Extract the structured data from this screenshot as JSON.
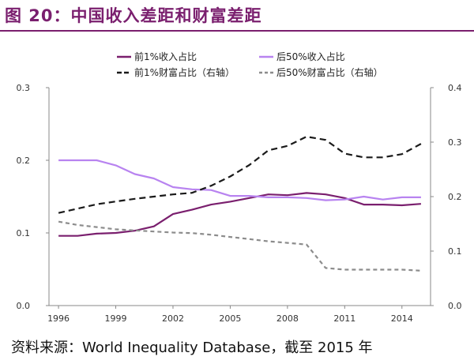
{
  "figure_title": "图 20：中国收入差距和财富差距",
  "source": "资料来源：World Inequality Database，截至 2015 年",
  "chart_data": {
    "type": "line",
    "x": [
      1996,
      1997,
      1998,
      1999,
      2000,
      2001,
      2002,
      2003,
      2004,
      2005,
      2006,
      2007,
      2008,
      2009,
      2010,
      2011,
      2012,
      2013,
      2014,
      2015
    ],
    "x_ticks": [
      "1996",
      "1999",
      "2002",
      "2005",
      "2008",
      "2011",
      "2014"
    ],
    "x_tick_values": [
      1996,
      1999,
      2002,
      2005,
      2008,
      2011,
      2014
    ],
    "xlim": [
      1995.5,
      2015.5
    ],
    "ylim_left": [
      0,
      0.3
    ],
    "y_ticks_left": [
      "0.0",
      "0.1",
      "0.2",
      "0.3"
    ],
    "ylim_right": [
      0,
      0.4
    ],
    "y_ticks_right": [
      "0.0",
      "0.1",
      "0.2",
      "0.3",
      "0.4"
    ],
    "grid": false,
    "legend_position": "top",
    "series": [
      {
        "name": "前1%收入占比",
        "axis": "left",
        "color": "#7a1f6e",
        "dash": "solid",
        "width": 2.2,
        "values": [
          0.096,
          0.096,
          0.099,
          0.1,
          0.103,
          0.109,
          0.126,
          0.132,
          0.139,
          0.143,
          0.148,
          0.153,
          0.152,
          0.155,
          0.153,
          0.148,
          0.139,
          0.139,
          0.138,
          0.14
        ]
      },
      {
        "name": "后50%收入占比",
        "axis": "left",
        "color": "#b883f0",
        "dash": "solid",
        "width": 2.2,
        "values": [
          0.2,
          0.2,
          0.2,
          0.193,
          0.181,
          0.175,
          0.163,
          0.16,
          0.159,
          0.151,
          0.151,
          0.149,
          0.149,
          0.148,
          0.145,
          0.146,
          0.15,
          0.146,
          0.149,
          0.149
        ]
      },
      {
        "name": "前1%财富占比（右轴）",
        "axis": "right",
        "color": "#1a1a1a",
        "dash": "8,5",
        "width": 2.2,
        "values": [
          0.17,
          0.178,
          0.186,
          0.191,
          0.196,
          0.2,
          0.204,
          0.207,
          0.22,
          0.237,
          0.258,
          0.285,
          0.293,
          0.31,
          0.304,
          0.279,
          0.272,
          0.272,
          0.278,
          0.297
        ]
      },
      {
        "name": "后50%财富占比（右轴）",
        "axis": "right",
        "color": "#8c8c8c",
        "dash": "5,4",
        "width": 2.2,
        "values": [
          0.154,
          0.148,
          0.144,
          0.14,
          0.138,
          0.136,
          0.134,
          0.133,
          0.13,
          0.126,
          0.122,
          0.118,
          0.115,
          0.112,
          0.069,
          0.066,
          0.066,
          0.066,
          0.066,
          0.064
        ]
      }
    ]
  }
}
